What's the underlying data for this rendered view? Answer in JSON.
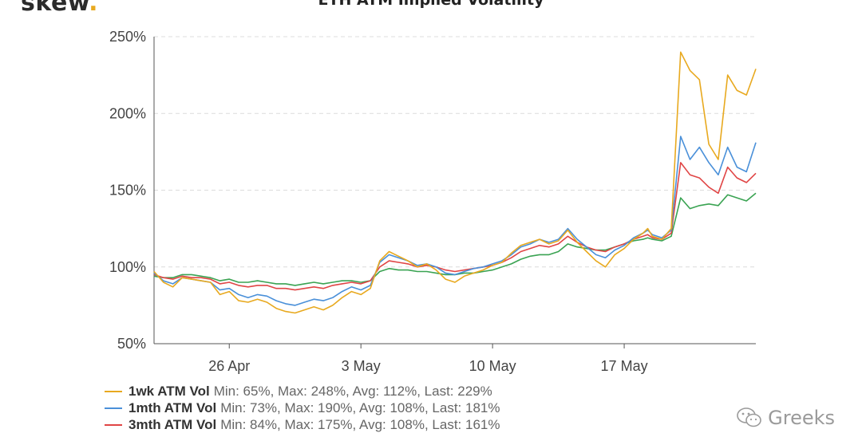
{
  "brand": {
    "name": "skew",
    "dot": "."
  },
  "watermark": {
    "text": "Greeks",
    "icon": "wechat-icon"
  },
  "chart_data": {
    "type": "line",
    "title": "ETH ATM Implied Volatility",
    "xlabel": "",
    "ylabel": "",
    "x_start": "2020-04-22",
    "x_end": "2020-05-24",
    "ylim": [
      50,
      250
    ],
    "y_ticks": [
      50,
      100,
      150,
      200,
      250
    ],
    "y_tick_labels": [
      "50%",
      "100%",
      "150%",
      "200%",
      "250%"
    ],
    "x_ticks": [
      "2020-04-26",
      "2020-05-03",
      "2020-05-10",
      "2020-05-17"
    ],
    "x_tick_labels": [
      "26 Apr",
      "3 May",
      "10 May",
      "17 May"
    ],
    "grid": true,
    "legend_position": "bottom-left",
    "series": [
      {
        "name": "1wk ATM Vol",
        "color": "#e8a91f",
        "stats": "Min: 65%, Max: 248%, Avg: 112%, Last: 229%",
        "x": [
          "2020-04-22",
          "2020-04-22T12:00",
          "2020-04-23",
          "2020-04-23T12:00",
          "2020-04-24",
          "2020-04-24T12:00",
          "2020-04-25",
          "2020-04-25T12:00",
          "2020-04-26",
          "2020-04-26T12:00",
          "2020-04-27",
          "2020-04-27T12:00",
          "2020-04-28",
          "2020-04-28T12:00",
          "2020-04-29",
          "2020-04-29T12:00",
          "2020-04-30",
          "2020-04-30T12:00",
          "2020-05-01",
          "2020-05-01T12:00",
          "2020-05-02",
          "2020-05-02T12:00",
          "2020-05-03",
          "2020-05-03T12:00",
          "2020-05-04",
          "2020-05-04T12:00",
          "2020-05-05",
          "2020-05-05T12:00",
          "2020-05-06",
          "2020-05-06T12:00",
          "2020-05-07",
          "2020-05-07T12:00",
          "2020-05-08",
          "2020-05-08T12:00",
          "2020-05-09",
          "2020-05-09T12:00",
          "2020-05-10",
          "2020-05-10T12:00",
          "2020-05-11",
          "2020-05-11T12:00",
          "2020-05-12",
          "2020-05-12T12:00",
          "2020-05-13",
          "2020-05-13T12:00",
          "2020-05-14",
          "2020-05-14T12:00",
          "2020-05-15",
          "2020-05-15T12:00",
          "2020-05-16",
          "2020-05-16T12:00",
          "2020-05-17",
          "2020-05-17T12:00",
          "2020-05-18",
          "2020-05-18T06:00",
          "2020-05-18T12:00",
          "2020-05-19",
          "2020-05-19T12:00",
          "2020-05-20",
          "2020-05-20T12:00",
          "2020-05-21",
          "2020-05-21T12:00",
          "2020-05-22",
          "2020-05-22T12:00",
          "2020-05-23",
          "2020-05-23T12:00",
          "2020-05-24"
        ],
        "values": [
          97,
          90,
          87,
          93,
          92,
          91,
          90,
          82,
          84,
          78,
          77,
          79,
          77,
          73,
          71,
          70,
          72,
          74,
          72,
          75,
          80,
          84,
          82,
          86,
          104,
          110,
          107,
          104,
          100,
          102,
          98,
          92,
          90,
          94,
          96,
          98,
          101,
          103,
          109,
          114,
          116,
          118,
          115,
          117,
          124,
          116,
          110,
          104,
          100,
          108,
          112,
          118,
          122,
          125,
          120,
          118,
          125,
          240,
          228,
          222,
          180,
          170,
          225,
          215,
          212,
          229
        ]
      },
      {
        "name": "1mth ATM Vol",
        "color": "#4a90d9",
        "stats": "Min: 73%, Max: 190%, Avg: 108%, Last: 181%",
        "x": [
          "2020-04-22",
          "2020-04-22T12:00",
          "2020-04-23",
          "2020-04-23T12:00",
          "2020-04-24",
          "2020-04-24T12:00",
          "2020-04-25",
          "2020-04-25T12:00",
          "2020-04-26",
          "2020-04-26T12:00",
          "2020-04-27",
          "2020-04-27T12:00",
          "2020-04-28",
          "2020-04-28T12:00",
          "2020-04-29",
          "2020-04-29T12:00",
          "2020-04-30",
          "2020-04-30T12:00",
          "2020-05-01",
          "2020-05-01T12:00",
          "2020-05-02",
          "2020-05-02T12:00",
          "2020-05-03",
          "2020-05-03T12:00",
          "2020-05-04",
          "2020-05-04T12:00",
          "2020-05-05",
          "2020-05-05T12:00",
          "2020-05-06",
          "2020-05-06T12:00",
          "2020-05-07",
          "2020-05-07T12:00",
          "2020-05-08",
          "2020-05-08T12:00",
          "2020-05-09",
          "2020-05-09T12:00",
          "2020-05-10",
          "2020-05-10T12:00",
          "2020-05-11",
          "2020-05-11T12:00",
          "2020-05-12",
          "2020-05-12T12:00",
          "2020-05-13",
          "2020-05-13T12:00",
          "2020-05-14",
          "2020-05-14T12:00",
          "2020-05-15",
          "2020-05-15T12:00",
          "2020-05-16",
          "2020-05-16T12:00",
          "2020-05-17",
          "2020-05-17T12:00",
          "2020-05-18",
          "2020-05-18T06:00",
          "2020-05-18T12:00",
          "2020-05-19",
          "2020-05-19T12:00",
          "2020-05-20",
          "2020-05-20T12:00",
          "2020-05-21",
          "2020-05-21T12:00",
          "2020-05-22",
          "2020-05-22T12:00",
          "2020-05-23",
          "2020-05-23T12:00",
          "2020-05-24"
        ],
        "values": [
          96,
          91,
          89,
          93,
          92,
          91,
          90,
          85,
          86,
          82,
          80,
          82,
          81,
          78,
          76,
          75,
          77,
          79,
          78,
          80,
          84,
          87,
          85,
          88,
          103,
          108,
          106,
          104,
          101,
          102,
          100,
          96,
          95,
          97,
          99,
          100,
          102,
          104,
          108,
          113,
          115,
          118,
          116,
          118,
          125,
          118,
          113,
          108,
          106,
          111,
          114,
          119,
          122,
          124,
          121,
          119,
          124,
          185,
          170,
          178,
          168,
          160,
          178,
          165,
          162,
          181
        ]
      },
      {
        "name": "3mth ATM Vol",
        "color": "#e04545",
        "stats": "Min: 84%, Max: 175%, Avg: 108%, Last: 161%",
        "x": [
          "2020-04-22",
          "2020-04-22T12:00",
          "2020-04-23",
          "2020-04-23T12:00",
          "2020-04-24",
          "2020-04-24T12:00",
          "2020-04-25",
          "2020-04-25T12:00",
          "2020-04-26",
          "2020-04-26T12:00",
          "2020-04-27",
          "2020-04-27T12:00",
          "2020-04-28",
          "2020-04-28T12:00",
          "2020-04-29",
          "2020-04-29T12:00",
          "2020-04-30",
          "2020-04-30T12:00",
          "2020-05-01",
          "2020-05-01T12:00",
          "2020-05-02",
          "2020-05-02T12:00",
          "2020-05-03",
          "2020-05-03T12:00",
          "2020-05-04",
          "2020-05-04T12:00",
          "2020-05-05",
          "2020-05-05T12:00",
          "2020-05-06",
          "2020-05-06T12:00",
          "2020-05-07",
          "2020-05-07T12:00",
          "2020-05-08",
          "2020-05-08T12:00",
          "2020-05-09",
          "2020-05-09T12:00",
          "2020-05-10",
          "2020-05-10T12:00",
          "2020-05-11",
          "2020-05-11T12:00",
          "2020-05-12",
          "2020-05-12T12:00",
          "2020-05-13",
          "2020-05-13T12:00",
          "2020-05-14",
          "2020-05-14T12:00",
          "2020-05-15",
          "2020-05-15T12:00",
          "2020-05-16",
          "2020-05-16T12:00",
          "2020-05-17",
          "2020-05-17T12:00",
          "2020-05-18",
          "2020-05-18T06:00",
          "2020-05-18T12:00",
          "2020-05-19",
          "2020-05-19T12:00",
          "2020-05-20",
          "2020-05-20T12:00",
          "2020-05-21",
          "2020-05-21T12:00",
          "2020-05-22",
          "2020-05-22T12:00",
          "2020-05-23",
          "2020-05-23T12:00",
          "2020-05-24"
        ],
        "values": [
          95,
          93,
          92,
          94,
          93,
          93,
          92,
          89,
          90,
          88,
          87,
          88,
          88,
          86,
          86,
          85,
          86,
          87,
          86,
          88,
          89,
          90,
          89,
          91,
          100,
          104,
          103,
          102,
          100,
          101,
          100,
          98,
          97,
          98,
          99,
          100,
          101,
          103,
          106,
          110,
          112,
          114,
          113,
          115,
          120,
          116,
          113,
          111,
          110,
          113,
          115,
          118,
          120,
          121,
          119,
          118,
          122,
          168,
          160,
          158,
          152,
          148,
          165,
          158,
          155,
          161
        ]
      },
      {
        "name": "",
        "color": "#3aa352",
        "stats": "",
        "x": [
          "2020-04-22",
          "2020-04-22T12:00",
          "2020-04-23",
          "2020-04-23T12:00",
          "2020-04-24",
          "2020-04-24T12:00",
          "2020-04-25",
          "2020-04-25T12:00",
          "2020-04-26",
          "2020-04-26T12:00",
          "2020-04-27",
          "2020-04-27T12:00",
          "2020-04-28",
          "2020-04-28T12:00",
          "2020-04-29",
          "2020-04-29T12:00",
          "2020-04-30",
          "2020-04-30T12:00",
          "2020-05-01",
          "2020-05-01T12:00",
          "2020-05-02",
          "2020-05-02T12:00",
          "2020-05-03",
          "2020-05-03T12:00",
          "2020-05-04",
          "2020-05-04T12:00",
          "2020-05-05",
          "2020-05-05T12:00",
          "2020-05-06",
          "2020-05-06T12:00",
          "2020-05-07",
          "2020-05-07T12:00",
          "2020-05-08",
          "2020-05-08T12:00",
          "2020-05-09",
          "2020-05-09T12:00",
          "2020-05-10",
          "2020-05-10T12:00",
          "2020-05-11",
          "2020-05-11T12:00",
          "2020-05-12",
          "2020-05-12T12:00",
          "2020-05-13",
          "2020-05-13T12:00",
          "2020-05-14",
          "2020-05-14T12:00",
          "2020-05-15",
          "2020-05-15T12:00",
          "2020-05-16",
          "2020-05-16T12:00",
          "2020-05-17",
          "2020-05-17T12:00",
          "2020-05-18",
          "2020-05-18T06:00",
          "2020-05-18T12:00",
          "2020-05-19",
          "2020-05-19T12:00",
          "2020-05-20",
          "2020-05-20T12:00",
          "2020-05-21",
          "2020-05-21T12:00",
          "2020-05-22",
          "2020-05-22T12:00",
          "2020-05-23",
          "2020-05-23T12:00",
          "2020-05-24"
        ],
        "values": [
          94,
          93,
          93,
          95,
          95,
          94,
          93,
          91,
          92,
          90,
          90,
          91,
          90,
          89,
          89,
          88,
          89,
          90,
          89,
          90,
          91,
          91,
          90,
          91,
          97,
          99,
          98,
          98,
          97,
          97,
          96,
          95,
          95,
          96,
          96,
          97,
          98,
          100,
          102,
          105,
          107,
          108,
          108,
          110,
          115,
          113,
          112,
          111,
          111,
          113,
          115,
          117,
          118,
          119,
          118,
          117,
          120,
          145,
          138,
          140,
          141,
          140,
          147,
          145,
          143,
          148
        ]
      }
    ]
  }
}
